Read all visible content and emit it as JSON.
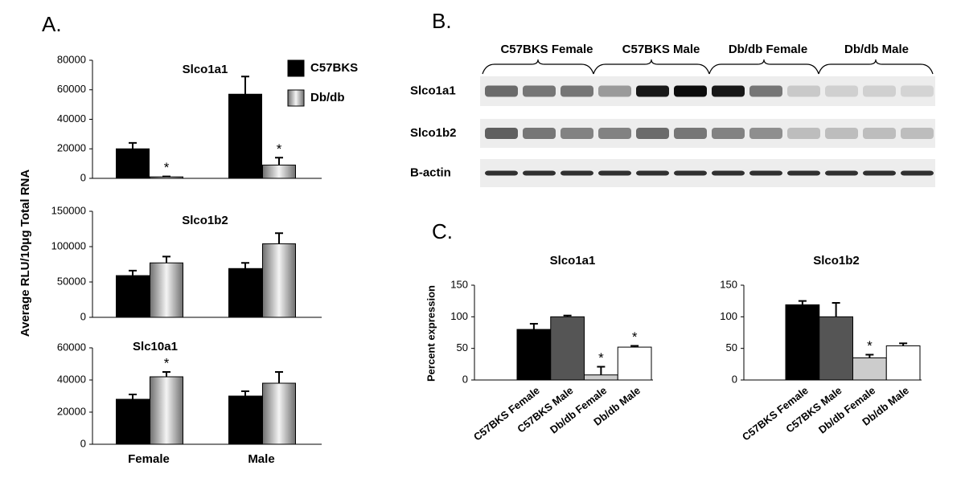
{
  "panels": [
    "A.",
    "B.",
    "C."
  ],
  "blot": {
    "groups": [
      "C57BKS Female",
      "C57BKS Male",
      "Db/db Female",
      "Db/db Male"
    ],
    "rows": [
      "Slco1a1",
      "Slco1b2",
      "B-actin"
    ]
  },
  "chart_data": [
    {
      "type": "bar",
      "title": "Slco1a1",
      "ylabel": "Average RLU/10μg Total RNA",
      "categories": [
        null,
        null
      ],
      "series": [
        {
          "name": "C57BKS",
          "color": "#000000",
          "values": [
            20000,
            57000
          ],
          "errors": [
            4000,
            12000
          ],
          "significance": [
            null,
            null
          ]
        },
        {
          "name": "Db/db",
          "color": "#6e6e6e",
          "style": "gradient",
          "values": [
            1000,
            9000
          ],
          "errors": [
            300,
            5000
          ],
          "significance": [
            "*",
            "*"
          ]
        }
      ],
      "ylim": [
        0,
        80000
      ],
      "yticks": [
        0,
        20000,
        40000,
        60000,
        80000
      ]
    },
    {
      "type": "bar",
      "title": "Slco1b2",
      "categories": [
        null,
        null
      ],
      "series": [
        {
          "color": "#000000",
          "values": [
            59000,
            69000
          ],
          "errors": [
            7000,
            8000
          ],
          "significance": [
            null,
            null
          ]
        },
        {
          "color": "#6e6e6e",
          "style": "gradient",
          "values": [
            77000,
            104000
          ],
          "errors": [
            9000,
            15000
          ],
          "significance": [
            null,
            null
          ]
        }
      ],
      "ylim": [
        0,
        150000
      ],
      "yticks": [
        0,
        50000,
        100000,
        150000
      ]
    },
    {
      "type": "bar",
      "title": "Slc10a1",
      "categories": [
        "Female",
        "Male"
      ],
      "series": [
        {
          "color": "#000000",
          "values": [
            28000,
            30000
          ],
          "errors": [
            3000,
            3000
          ],
          "significance": [
            null,
            null
          ]
        },
        {
          "color": "#6e6e6e",
          "style": "gradient",
          "values": [
            42000,
            38000
          ],
          "errors": [
            3000,
            7000
          ],
          "significance": [
            "*",
            null
          ]
        }
      ],
      "ylim": [
        0,
        60000
      ],
      "yticks": [
        0,
        20000,
        40000,
        60000
      ]
    },
    {
      "type": "bar",
      "title": "Slco1a1",
      "ylabel": "Percent expression",
      "categories": [
        "C57BKS Female",
        "C57BKS Male",
        "Db/db Female",
        "Db/db Male"
      ],
      "values": [
        80,
        100,
        8,
        52
      ],
      "errors": [
        9,
        2,
        13,
        2
      ],
      "significance": [
        null,
        null,
        "*",
        "*"
      ],
      "colors": [
        "#000000",
        "#555555",
        "#cccccc",
        "#ffffff"
      ],
      "ylim": [
        0,
        150
      ],
      "yticks": [
        0,
        50,
        100,
        150
      ]
    },
    {
      "type": "bar",
      "title": "Slco1b2",
      "categories": [
        "C57BKS Female",
        "C57BKS Male",
        "Db/db Female",
        "Db/db Male"
      ],
      "values": [
        119,
        100,
        35,
        54
      ],
      "errors": [
        6,
        22,
        5,
        4
      ],
      "significance": [
        null,
        null,
        "*",
        null
      ],
      "colors": [
        "#000000",
        "#555555",
        "#cccccc",
        "#ffffff"
      ],
      "ylim": [
        0,
        150
      ],
      "yticks": [
        0,
        50,
        100,
        150
      ]
    }
  ]
}
